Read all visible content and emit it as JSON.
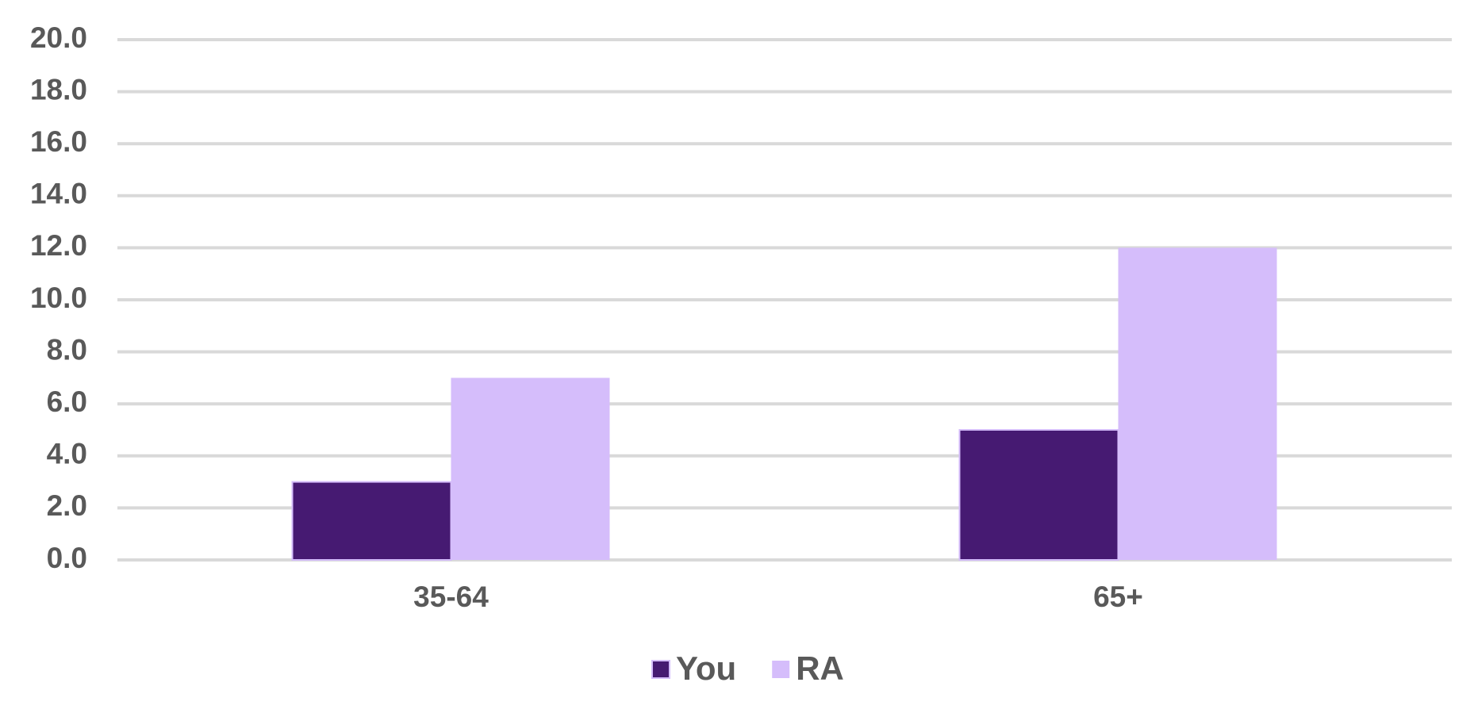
{
  "chart_data": {
    "type": "bar",
    "categories": [
      "35-64",
      "65+"
    ],
    "series": [
      {
        "name": "You",
        "color": "#461a72",
        "values": [
          3,
          5
        ]
      },
      {
        "name": "RA",
        "color": "#d5bdfb",
        "values": [
          7,
          12
        ]
      }
    ],
    "ylim": [
      0,
      20
    ],
    "yticks": [
      {
        "value": 0,
        "label": "0.0"
      },
      {
        "value": 2,
        "label": "2.0"
      },
      {
        "value": 4,
        "label": "4.0"
      },
      {
        "value": 6,
        "label": "6.0"
      },
      {
        "value": 8,
        "label": "8.0"
      },
      {
        "value": 10,
        "label": "10.0"
      },
      {
        "value": 12,
        "label": "12.0"
      },
      {
        "value": 14,
        "label": "14.0"
      },
      {
        "value": 16,
        "label": "16.0"
      },
      {
        "value": 18,
        "label": "18.0"
      },
      {
        "value": 20,
        "label": "20.0"
      }
    ],
    "grid": true,
    "legend": "bottom"
  }
}
